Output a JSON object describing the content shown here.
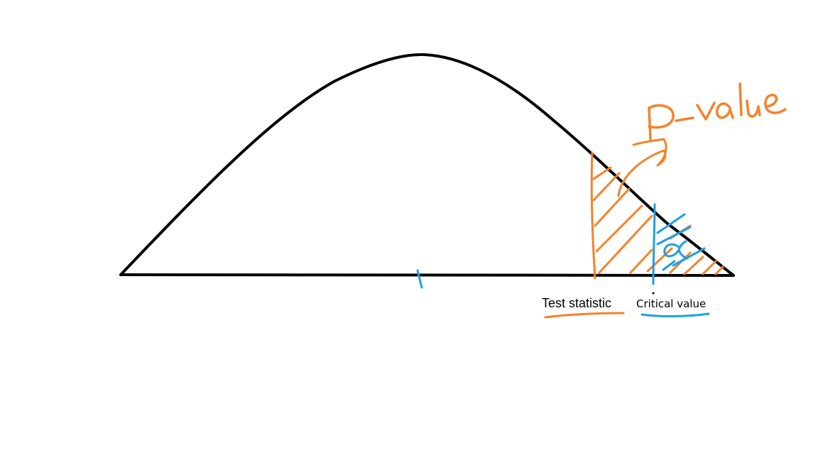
{
  "labels": {
    "p_value": "p-value",
    "alpha": "α",
    "test_statistic": "Test statistic",
    "critical_value": "Critical value"
  },
  "colors": {
    "curve": "#000000",
    "p_value_region": "#F5822A",
    "alpha_region": "#1BA1E2",
    "text": "#000000"
  }
}
